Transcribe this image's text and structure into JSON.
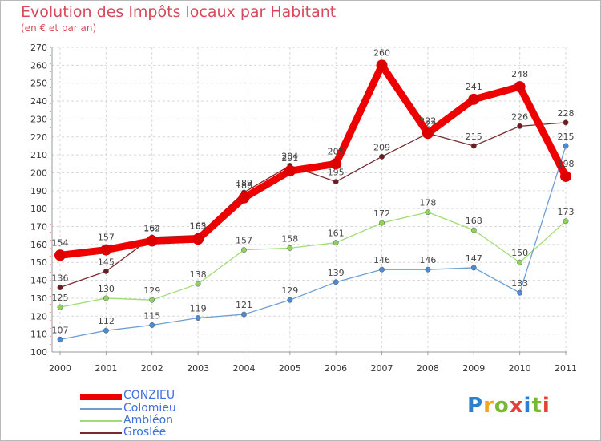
{
  "header": {
    "title": "Evolution des Impôts locaux par Habitant",
    "subtitle": "(en € et par an)"
  },
  "logo": {
    "text": "Proxiti",
    "letter_colors": [
      "#2f7fd0",
      "#f0a51a",
      "#7ab834",
      "#e2403b",
      "#2f7fd0",
      "#7ab834",
      "#e2403b"
    ]
  },
  "chart_data": {
    "type": "line",
    "title": "Evolution des Impôts locaux par Habitant",
    "subtitle": "(en € et par an)",
    "xlabel": "",
    "ylabel": "",
    "categories": [
      "2000",
      "2001",
      "2002",
      "2003",
      "2004",
      "2005",
      "2006",
      "2007",
      "2008",
      "2009",
      "2010",
      "2011"
    ],
    "ylim": [
      100,
      270
    ],
    "yticks": [
      100,
      110,
      120,
      130,
      140,
      150,
      160,
      170,
      180,
      190,
      200,
      210,
      220,
      230,
      240,
      250,
      260,
      270
    ],
    "grid": true,
    "legend_position": "bottom-left",
    "series": [
      {
        "name": "Groslée",
        "color": "#7a2a2f",
        "marker": "#6e1c22",
        "width": "thin",
        "values": [
          136,
          145,
          164,
          165,
          189,
          204,
          195,
          209,
          222,
          215,
          226,
          228
        ],
        "labels": [
          "136",
          "145",
          "164",
          "165",
          "189",
          "204",
          "195",
          "209",
          "222",
          "215",
          "226",
          "228"
        ]
      },
      {
        "name": "Ambléon",
        "color": "#9fdc72",
        "marker": "#8fd35a",
        "width": "thin",
        "values": [
          125,
          130,
          129,
          138,
          157,
          158,
          161,
          172,
          178,
          168,
          150,
          173
        ],
        "labels": [
          "125",
          "130",
          "129",
          "138",
          "157",
          "158",
          "161",
          "172",
          "178",
          "168",
          "150",
          "173"
        ]
      },
      {
        "name": "Colomieu",
        "color": "#6d9ed6",
        "marker": "#4d8ad0",
        "width": "thin",
        "values": [
          107,
          112,
          115,
          119,
          121,
          129,
          139,
          146,
          146,
          147,
          133,
          215
        ],
        "labels": [
          "107",
          "112",
          "115",
          "119",
          "121",
          "129",
          "139",
          "146",
          "146",
          "147",
          "133",
          "215"
        ]
      },
      {
        "name": "CONZIEU",
        "color": "#ee0000",
        "marker": "#dd0000",
        "width": "thick",
        "values": [
          154,
          157,
          162,
          163,
          186,
          201,
          205,
          260,
          222,
          241,
          248,
          198
        ],
        "labels": [
          "154",
          "157",
          "162",
          "163",
          "186",
          "201",
          "205",
          "260",
          "222",
          "241",
          "248",
          "198"
        ]
      }
    ]
  },
  "legend": [
    {
      "name": "CONZIEU",
      "color": "#ee0000",
      "text_color": "#3f6fe0"
    },
    {
      "name": "Colomieu",
      "color": "#6d9ed6",
      "text_color": "#3f6fe0"
    },
    {
      "name": "Ambléon",
      "color": "#9fdc72",
      "text_color": "#3f6fe0"
    },
    {
      "name": "Groslée",
      "color": "#7a2a2f",
      "text_color": "#3f6fe0"
    }
  ]
}
